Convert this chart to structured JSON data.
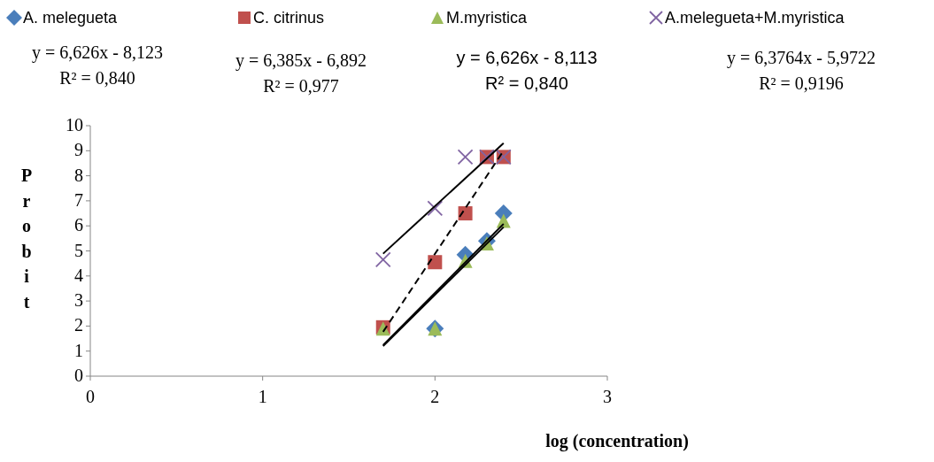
{
  "chart_data": {
    "type": "scatter",
    "xlabel": "log (concentration)",
    "ylabel": "Probit",
    "xlim": [
      0,
      3
    ],
    "xticks": [
      0,
      1,
      2,
      3
    ],
    "ylim": [
      0,
      10
    ],
    "yticks": [
      0,
      1,
      2,
      3,
      4,
      5,
      6,
      7,
      8,
      9,
      10
    ],
    "grid": false,
    "legend": "top",
    "annotations": [
      "y = 6,626x - 8,123\nR² = 0,840",
      "y = 6,385x - 6,892\nR² = 0,977",
      "y = 6,626x - 8,113\nR² = 0,840",
      "y = 6,3764x - 5,9722\nR² = 0,9196"
    ],
    "series": [
      {
        "name": "A. melegueta",
        "color": "#4a7ebb",
        "marker": "diamond",
        "x": [
          2.0,
          2.176,
          2.301,
          2.398
        ],
        "values": [
          1.9,
          4.85,
          5.4,
          6.5
        ]
      },
      {
        "name": "C. citrinus",
        "color": "#c0504d",
        "marker": "square",
        "x": [
          1.699,
          2.0,
          2.176,
          2.301,
          2.398
        ],
        "values": [
          1.95,
          4.55,
          6.5,
          8.75,
          8.75
        ]
      },
      {
        "name": "M.myristica",
        "color": "#9bbb59",
        "marker": "triangle",
        "x": [
          1.699,
          2.0,
          2.176,
          2.301,
          2.398
        ],
        "values": [
          1.9,
          1.9,
          4.6,
          5.3,
          6.2
        ]
      },
      {
        "name": "A.melegueta+M.myristica",
        "color": "#8064a2",
        "marker": "cross",
        "x": [
          1.699,
          2.0,
          2.176,
          2.301,
          2.398
        ],
        "values": [
          4.65,
          6.7,
          8.75,
          8.75,
          8.75
        ]
      },
      {
        "type": "line",
        "color": "#000000",
        "line_style": "solid",
        "x": [
          1.699,
          2.398
        ],
        "values": [
          1.24,
          6.08
        ]
      },
      {
        "type": "line",
        "color": "#000000",
        "line_style": "dashed",
        "x": [
          1.699,
          2.398
        ],
        "values": [
          1.77,
          9.0
        ]
      },
      {
        "type": "line",
        "color": "#000000",
        "line_style": "solid",
        "x": [
          1.699,
          2.398
        ],
        "values": [
          1.2,
          5.95
        ]
      },
      {
        "type": "line",
        "color": "#000000",
        "line_style": "solid",
        "x": [
          1.699,
          2.398
        ],
        "values": [
          4.89,
          9.3
        ]
      }
    ]
  }
}
